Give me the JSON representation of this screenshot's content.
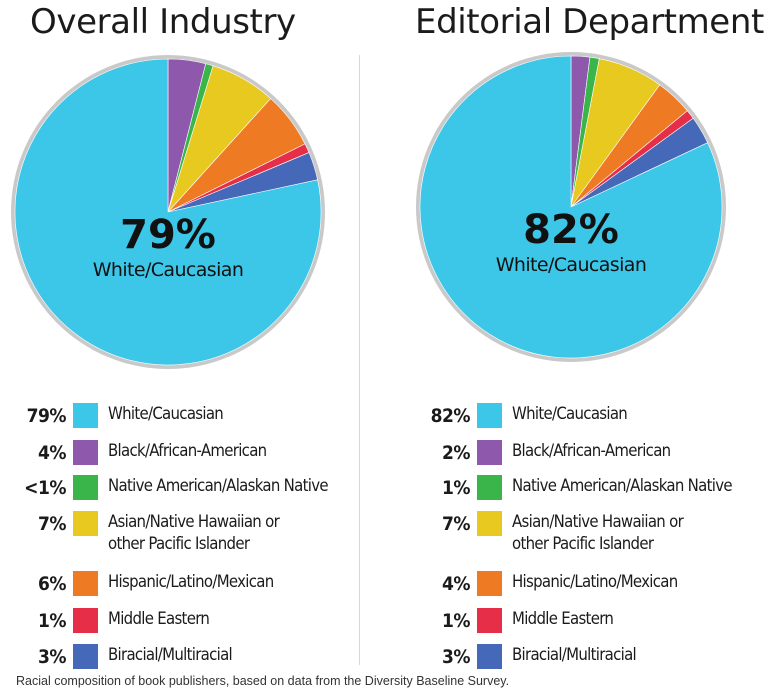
{
  "chart_data": [
    {
      "type": "pie",
      "title": "Overall Industry",
      "center_value": "79%",
      "center_label": "White/Caucasian",
      "categories": [
        "White/Caucasian",
        "Black/African-American",
        "Native American/Alaskan Native",
        "Asian/Native Hawaiian or other Pacific Islander",
        "Hispanic/Latino/Mexican",
        "Middle Eastern",
        "Biracial/Multiracial"
      ],
      "values": [
        79,
        4,
        0.8,
        7,
        6,
        1,
        3
      ],
      "value_labels": [
        "79%",
        "4%",
        "<1%",
        "7%",
        "6%",
        "1%",
        "3%"
      ],
      "legend_lines": [
        [
          "White/Caucasian"
        ],
        [
          "Black/African-American"
        ],
        [
          "Native American/Alaskan Native"
        ],
        [
          "Asian/Native Hawaiian or",
          "other Pacific Islander"
        ],
        [
          "Hispanic/Latino/Mexican"
        ],
        [
          "Middle Eastern"
        ],
        [
          "Biracial/Multiracial"
        ]
      ],
      "colors": [
        "#3cc6e8",
        "#8e59ad",
        "#3ab54a",
        "#e8c91f",
        "#ee7a24",
        "#e62e48",
        "#4668b8"
      ]
    },
    {
      "type": "pie",
      "title": "Editorial Department",
      "center_value": "82%",
      "center_label": "White/Caucasian",
      "categories": [
        "White/Caucasian",
        "Black/African-American",
        "Native American/Alaskan Native",
        "Asian/Native Hawaiian or other Pacific Islander",
        "Hispanic/Latino/Mexican",
        "Middle Eastern",
        "Biracial/Multiracial"
      ],
      "values": [
        82,
        2,
        1,
        7,
        4,
        1,
        3
      ],
      "value_labels": [
        "82%",
        "2%",
        "1%",
        "7%",
        "4%",
        "1%",
        "3%"
      ],
      "legend_lines": [
        [
          "White/Caucasian"
        ],
        [
          "Black/African-American"
        ],
        [
          "Native American/Alaskan Native"
        ],
        [
          "Asian/Native Hawaiian or",
          "other Pacific Islander"
        ],
        [
          "Hispanic/Latino/Mexican"
        ],
        [
          "Middle Eastern"
        ],
        [
          "Biracial/Multiracial"
        ]
      ],
      "colors": [
        "#3cc6e8",
        "#8e59ad",
        "#3ab54a",
        "#e8c91f",
        "#ee7a24",
        "#e62e48",
        "#4668b8"
      ]
    }
  ],
  "caption": "Racial composition of book publishers, based on data from the Diversity Baseline Survey.",
  "ring_color": "#c9c9c9"
}
